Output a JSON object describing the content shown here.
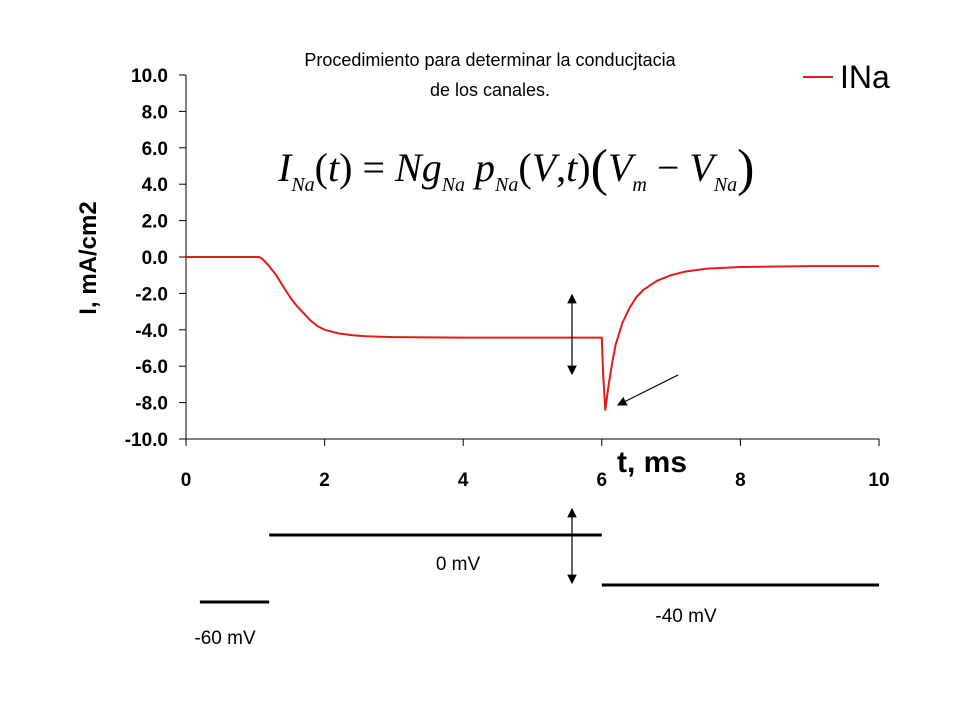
{
  "chart_data": {
    "type": "line",
    "title": "Procedimiento para determinar la conducjtacia",
    "subtitle": "de los canales.",
    "xlabel": "t, ms",
    "ylabel": "I, mA/cm2",
    "xlim": [
      0,
      10
    ],
    "ylim": [
      -10,
      10
    ],
    "xticks": [
      "0",
      "2",
      "4",
      "6",
      "8",
      "10"
    ],
    "yticks": [
      "10.0",
      "8.0",
      "6.0",
      "4.0",
      "2.0",
      "0.0",
      "-2.0",
      "-4.0",
      "-6.0",
      "-8.0",
      "-10.0"
    ],
    "grid": false,
    "legend_position": "top-right",
    "series": [
      {
        "name": "INa",
        "color": "#e31a1c",
        "x": [
          0,
          1.05,
          1.1,
          1.2,
          1.3,
          1.4,
          1.5,
          1.6,
          1.7,
          1.8,
          1.9,
          2.0,
          2.2,
          2.4,
          2.6,
          2.8,
          3.0,
          3.5,
          4.0,
          5.0,
          6.0,
          6.02,
          6.05,
          6.1,
          6.15,
          6.2,
          6.3,
          6.4,
          6.5,
          6.6,
          6.8,
          7.0,
          7.2,
          7.5,
          8.0,
          9.0,
          10.0
        ],
        "y": [
          0,
          0,
          -0.1,
          -0.5,
          -1.0,
          -1.6,
          -2.2,
          -2.7,
          -3.1,
          -3.5,
          -3.8,
          -4.0,
          -4.2,
          -4.3,
          -4.35,
          -4.38,
          -4.4,
          -4.42,
          -4.43,
          -4.43,
          -4.43,
          -6.5,
          -8.4,
          -7.0,
          -5.8,
          -4.8,
          -3.6,
          -2.8,
          -2.2,
          -1.8,
          -1.3,
          -1.0,
          -0.8,
          -0.65,
          -0.55,
          -0.5,
          -0.5
        ]
      }
    ],
    "equation": "I_Na(t) = N g_Na p_Na(V,t)(V_m - V_Na)",
    "voltage_protocol": [
      {
        "label": "-60 mV",
        "t_start": 0.2,
        "t_end": 1.2
      },
      {
        "label": "0 mV",
        "t_start": 1.2,
        "t_end": 6.0
      },
      {
        "label": "-40 mV",
        "t_start": 6.0,
        "t_end": 10.0
      }
    ]
  }
}
